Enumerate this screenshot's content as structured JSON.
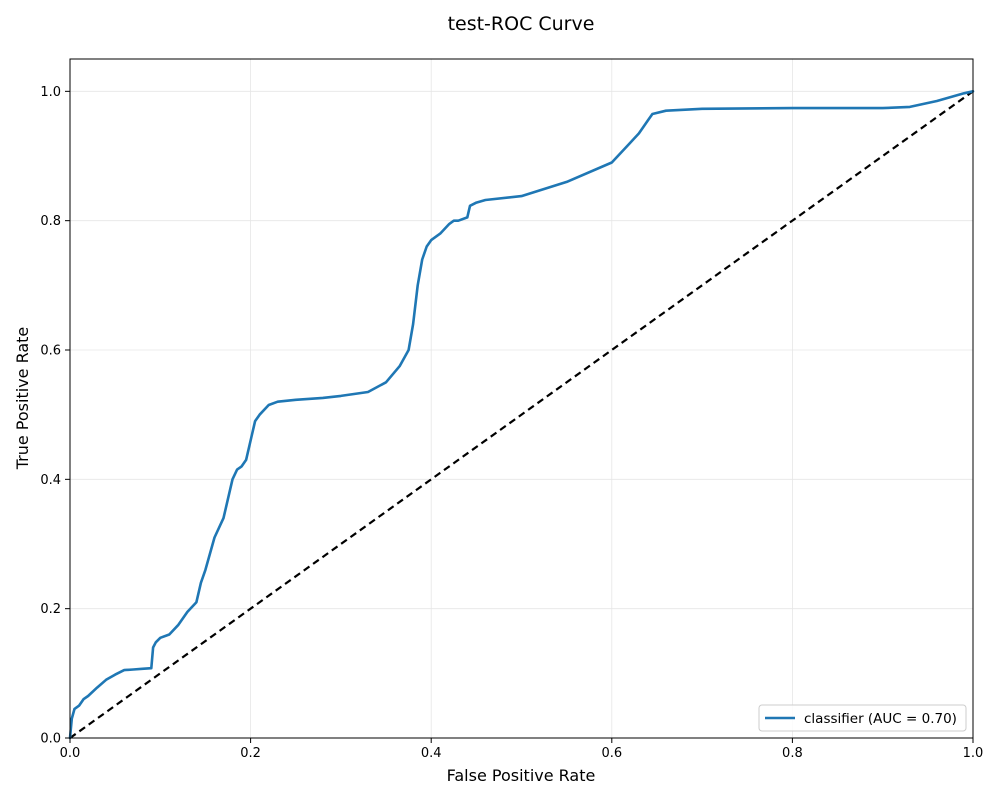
{
  "chart_data": {
    "type": "line",
    "title": "test-ROC Curve",
    "xlabel": "False Positive Rate",
    "ylabel": "True Positive Rate",
    "xlim": [
      0.0,
      1.0
    ],
    "ylim": [
      0.0,
      1.05
    ],
    "x_ticks": [
      "0.0",
      "0.2",
      "0.4",
      "0.6",
      "0.8",
      "1.0"
    ],
    "y_ticks": [
      "0.0",
      "0.2",
      "0.4",
      "0.6",
      "0.8",
      "1.0"
    ],
    "grid": true,
    "legend_position": "lower-right",
    "colors": {
      "curve": "#1f77b4",
      "diagonal": "#000000",
      "grid": "#e6e6e6"
    },
    "series": [
      {
        "name": "classifier (AUC = 0.70)",
        "x": [
          0.0,
          0.002,
          0.005,
          0.01,
          0.015,
          0.02,
          0.03,
          0.04,
          0.05,
          0.06,
          0.07,
          0.08,
          0.09,
          0.092,
          0.095,
          0.1,
          0.11,
          0.12,
          0.13,
          0.14,
          0.145,
          0.15,
          0.16,
          0.17,
          0.175,
          0.18,
          0.185,
          0.19,
          0.195,
          0.2,
          0.205,
          0.21,
          0.22,
          0.23,
          0.25,
          0.28,
          0.3,
          0.33,
          0.35,
          0.365,
          0.375,
          0.38,
          0.385,
          0.39,
          0.395,
          0.4,
          0.41,
          0.42,
          0.425,
          0.43,
          0.44,
          0.443,
          0.45,
          0.46,
          0.5,
          0.55,
          0.6,
          0.62,
          0.63,
          0.64,
          0.645,
          0.66,
          0.7,
          0.8,
          0.9,
          0.93,
          0.96,
          0.99,
          1.0
        ],
        "y": [
          0.0,
          0.03,
          0.045,
          0.05,
          0.06,
          0.065,
          0.078,
          0.09,
          0.098,
          0.105,
          0.106,
          0.107,
          0.108,
          0.14,
          0.148,
          0.155,
          0.16,
          0.175,
          0.195,
          0.21,
          0.24,
          0.26,
          0.31,
          0.34,
          0.37,
          0.4,
          0.415,
          0.42,
          0.43,
          0.46,
          0.49,
          0.5,
          0.515,
          0.52,
          0.523,
          0.526,
          0.529,
          0.535,
          0.55,
          0.575,
          0.6,
          0.64,
          0.7,
          0.74,
          0.76,
          0.77,
          0.78,
          0.795,
          0.8,
          0.8,
          0.805,
          0.823,
          0.828,
          0.832,
          0.838,
          0.86,
          0.89,
          0.92,
          0.935,
          0.955,
          0.965,
          0.97,
          0.973,
          0.974,
          0.974,
          0.976,
          0.985,
          0.997,
          1.0
        ]
      },
      {
        "name": "",
        "x": [
          0.0,
          1.0
        ],
        "y": [
          0.0,
          1.0
        ]
      }
    ]
  }
}
